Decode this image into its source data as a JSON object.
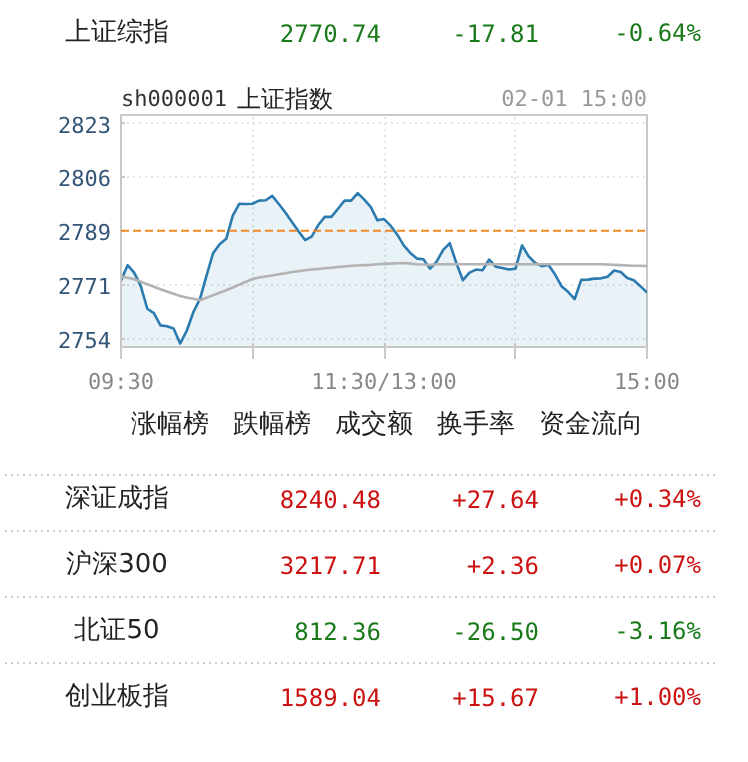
{
  "chart_data": [
    {
      "type": "other",
      "annotations": [
        "上证综指",
        "2770.74",
        "-17.81",
        "-0.64%"
      ],
      "colors": [
        "#222222",
        "#1a7a1a",
        "#1a7a1a",
        "#1a7a1a"
      ]
    },
    {
      "type": "area",
      "title": "sh000001",
      "subtitle": "上证指数",
      "annotations": [
        "02-01 15:00"
      ],
      "ylim": [
        2751.5,
        2825.5
      ],
      "categories": [
        "09:30",
        null,
        null,
        null,
        null,
        null,
        null,
        null,
        null,
        null,
        null,
        null,
        null,
        null,
        null,
        null,
        null,
        null,
        null,
        null,
        null,
        null,
        null,
        null,
        null,
        null,
        null,
        null,
        null,
        null,
        null,
        null,
        null,
        null,
        null,
        null,
        null,
        null,
        null,
        null,
        "11:30/13:00",
        null,
        null,
        null,
        null,
        null,
        null,
        null,
        null,
        null,
        null,
        null,
        null,
        null,
        null,
        null,
        null,
        null,
        null,
        null,
        null,
        null,
        null,
        null,
        null,
        null,
        null,
        null,
        null,
        null,
        null,
        null,
        null,
        null,
        null,
        null,
        null,
        null,
        null,
        null,
        "15:00"
      ],
      "yticks": [
        {
          "value": 2754.2,
          "label": "2754"
        },
        {
          "value": 2771.4,
          "label": "2771"
        },
        {
          "value": 2788.55,
          "label": "2789"
        },
        {
          "value": 2805.7,
          "label": "2806"
        },
        {
          "value": 2822.9,
          "label": "2823"
        }
      ],
      "grid": true,
      "ref_lines": [
        {
          "axis": "y",
          "value": 2788.55,
          "label": null,
          "color": "#f08c28",
          "line_style": "dashed"
        }
      ],
      "series": [
        {
          "type": "area",
          "color": "#2b7bb0",
          "values": [
            2772.6,
            2777.6,
            2775.2,
            2771.0,
            2763.7,
            2762.3,
            2758.4,
            2758.1,
            2757.4,
            2752.6,
            2756.7,
            2762.6,
            2766.8,
            2774.2,
            2781.4,
            2784.3,
            2786.0,
            2793.4,
            2797.2,
            2797.1,
            2797.2,
            2798.2,
            2798.3,
            2799.7,
            2797.1,
            2794.4,
            2791.4,
            2788.4,
            2785.6,
            2786.7,
            2790.4,
            2793.0,
            2793.0,
            2795.6,
            2798.2,
            2798.2,
            2800.6,
            2798.5,
            2796.1,
            2791.9,
            2792.3,
            2790.2,
            2787.4,
            2783.9,
            2781.5,
            2779.7,
            2779.5,
            2776.5,
            2778.7,
            2782.5,
            2784.6,
            2778.3,
            2772.8,
            2775.2,
            2776.2,
            2776.0,
            2779.4,
            2777.1,
            2776.7,
            2776.2,
            2776.5,
            2783.9,
            2780.4,
            2778.3,
            2777.3,
            2777.7,
            2774.7,
            2770.9,
            2769.1,
            2766.8,
            2772.9,
            2773.0,
            2773.3,
            2773.4,
            2773.9,
            2775.9,
            2775.4,
            2773.5,
            2772.8,
            2770.9,
            2768.9
          ]
        },
        {
          "type": "line",
          "color": "#b3b3b3",
          "values": [
            2774.1,
            2773.6,
            2773.1,
            2772.3,
            2771.5,
            2770.7,
            2769.9,
            2769.2,
            2768.5,
            2767.8,
            2767.3,
            2766.9,
            2766.4,
            2767.2,
            2768.0,
            2768.8,
            2769.6,
            2770.5,
            2771.4,
            2772.3,
            2773.2,
            2773.7,
            2774.0,
            2774.3,
            2774.7,
            2775.0,
            2775.4,
            2775.7,
            2776.0,
            2776.2,
            2776.4,
            2776.6,
            2776.8,
            2777.0,
            2777.2,
            2777.4,
            2777.5,
            2777.6,
            2777.7,
            2777.9,
            2778.0,
            2778.1,
            2778.2,
            2778.3,
            2778.1,
            2777.9,
            2777.8,
            2777.7,
            2777.9,
            2777.9,
            2777.9,
            2777.9,
            2777.9,
            2777.9,
            2777.9,
            2777.9,
            2777.9,
            2777.9,
            2777.9,
            2777.9,
            2777.9,
            2777.9,
            2777.9,
            2777.9,
            2777.9,
            2777.9,
            2777.9,
            2777.9,
            2777.9,
            2777.9,
            2777.9,
            2777.9,
            2777.9,
            2777.9,
            2777.8,
            2777.7,
            2777.6,
            2777.5,
            2777.4,
            2777.4,
            2777.3
          ]
        }
      ]
    },
    {
      "type": "other",
      "annotations": [
        "涨幅榜",
        "跌幅榜",
        "成交额",
        "换手率",
        "资金流向"
      ]
    },
    {
      "type": "other",
      "annotations": [
        "深证成指",
        "8240.48",
        "+27.64",
        "+0.34%",
        "沪深300",
        "3217.71",
        "+2.36",
        "+0.07%",
        "北证50",
        "812.36",
        "-26.50",
        "-3.16%",
        "创业板指",
        "1589.04",
        "+15.67",
        "+1.00%"
      ],
      "colors": [
        "#222222",
        "#cc1111",
        "#cc1111",
        "#cc1111",
        "#222222",
        "#cc1111",
        "#cc1111",
        "#cc1111",
        "#222222",
        "#1a7a1a",
        "#1a7a1a",
        "#1a7a1a",
        "#222222",
        "#cc1111",
        "#cc1111",
        "#cc1111"
      ]
    }
  ]
}
